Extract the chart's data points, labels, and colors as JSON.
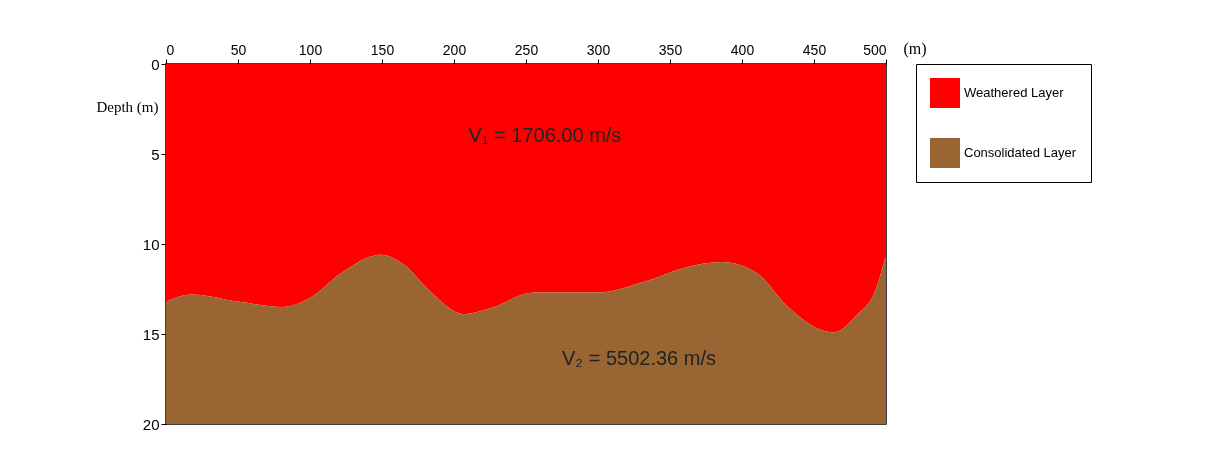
{
  "chart_data": {
    "type": "area",
    "stacked": true,
    "xlabel": "(m)",
    "ylabel": "Depth (m)",
    "x": [
      0,
      18,
      50,
      81,
      100,
      122,
      149,
      166,
      183,
      207,
      224,
      256,
      300,
      332,
      361,
      386,
      410,
      432,
      456,
      464,
      479,
      493,
      500
    ],
    "series": [
      {
        "name": "Weathered Layer",
        "color": "#ff0000",
        "values": [
          13.2,
          12.8,
          13.2,
          13.5,
          13.0,
          11.6,
          10.6,
          11.2,
          12.6,
          13.9,
          13.6,
          12.7,
          12.7,
          12.1,
          11.3,
          11.0,
          11.6,
          13.5,
          14.8,
          14.9,
          14.0,
          12.5,
          10.6
        ]
      },
      {
        "name": "Consolidated Layer",
        "color": "#996633",
        "values": [
          6.8,
          7.2,
          6.8,
          6.5,
          7.0,
          8.4,
          9.4,
          8.8,
          7.4,
          6.1,
          6.4,
          7.3,
          7.3,
          7.9,
          8.7,
          9.0,
          8.4,
          6.5,
          5.2,
          5.1,
          6.0,
          7.5,
          9.4
        ]
      }
    ],
    "xlim": [
      0,
      500
    ],
    "xticks": [
      0,
      50,
      100,
      150,
      200,
      250,
      300,
      350,
      400,
      450,
      500
    ],
    "ylim": [
      20,
      0
    ],
    "yticks": [
      0,
      5,
      10,
      15,
      20
    ],
    "legend": "right",
    "grid": false,
    "annotations": [
      "V₁ = 1706.00 m/s",
      "V₂ = 5502.36 m/s"
    ]
  }
}
